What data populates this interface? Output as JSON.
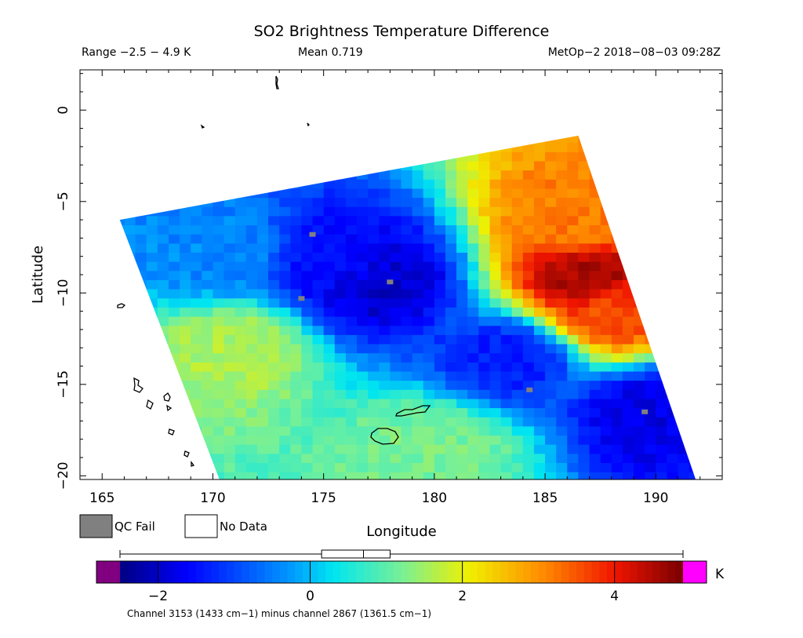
{
  "title": "SO2 Brightness Temperature Difference",
  "header": {
    "range": "Range −2.5 − 4.9 K",
    "mean": "Mean 0.719",
    "satellite": "MetOp−2 2018−08−03 09:28Z"
  },
  "legend": {
    "qc_fail": "QC Fail",
    "no_data": "No Data",
    "qc_fail_color": "#808080",
    "no_data_color": "#ffffff"
  },
  "colorbar": {
    "unit": "K",
    "range": [
      -2.5,
      4.9
    ],
    "ticks": [
      "−2",
      "0",
      "2",
      "4"
    ],
    "under_color": "#800080",
    "over_color": "#ff00ff",
    "boxplot": {
      "min": -2.5,
      "q1": 0.15,
      "median": 0.7,
      "q3": 1.05,
      "max": 4.9
    },
    "caption": "Channel 3153 (1433 cm−1) minus channel 2867 (1361.5 cm−1)"
  },
  "chart_data": {
    "type": "heatmap",
    "title": "SO2 Brightness Temperature Difference",
    "xlabel": "Longitude",
    "ylabel": "Latitude",
    "xlim": [
      164,
      193
    ],
    "ylim": [
      -20.2,
      2.2
    ],
    "xticks": [
      "165",
      "170",
      "175",
      "180",
      "185",
      "190"
    ],
    "yticks": [
      "0",
      "−5",
      "−10",
      "−15",
      "−20"
    ],
    "value_range": [
      -2.5,
      4.9
    ],
    "mean": 0.719,
    "units": "K",
    "swath_corners": [
      [
        165.8,
        -6.0
      ],
      [
        186.5,
        -1.4
      ],
      [
        191.8,
        -20.2
      ],
      [
        170.3,
        -20.2
      ]
    ],
    "features": [
      {
        "lon": 177.5,
        "lat": -9.5,
        "value": -2.0
      },
      {
        "lon": 176.0,
        "lat": -8.5,
        "value": -1.6
      },
      {
        "lon": 183.5,
        "lat": -13.5,
        "value": -1.4
      },
      {
        "lon": 190.0,
        "lat": -16.5,
        "value": -1.8
      },
      {
        "lon": 187.0,
        "lat": -9.3,
        "value": 4.6
      },
      {
        "lon": 186.5,
        "lat": -6.0,
        "value": 3.2
      },
      {
        "lon": 188.0,
        "lat": -11.0,
        "value": 3.6
      },
      {
        "lon": 171.0,
        "lat": -13.0,
        "value": 1.6
      },
      {
        "lon": 180.0,
        "lat": -18.5,
        "value": 1.2
      },
      {
        "lon": 170.0,
        "lat": -8.0,
        "value": -0.4
      }
    ],
    "qc_fail": [
      [
        174.0,
        -10.3
      ],
      [
        174.5,
        -6.8
      ],
      [
        178.0,
        -9.4
      ],
      [
        184.3,
        -15.3
      ],
      [
        189.5,
        -16.5
      ]
    ]
  }
}
